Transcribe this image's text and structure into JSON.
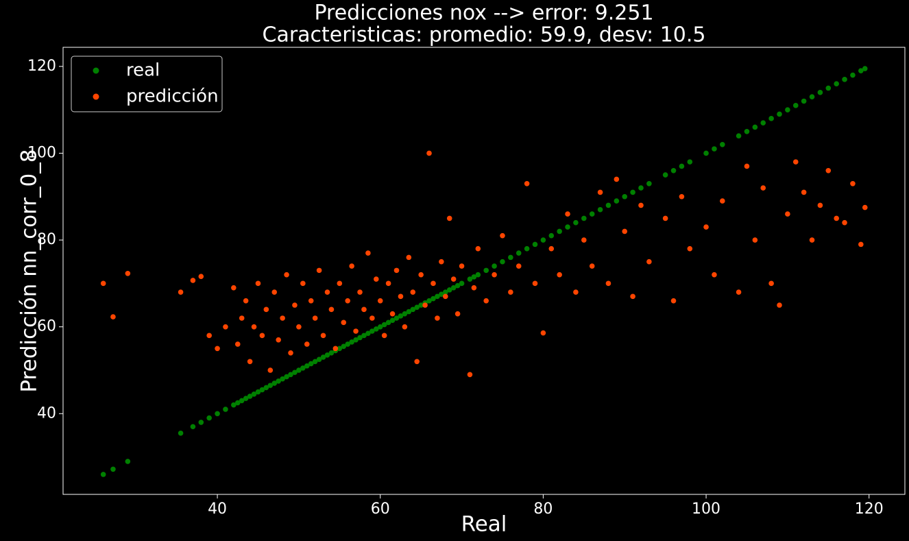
{
  "chart_data": {
    "type": "scatter",
    "title": "Predicciones nox --> error: 9.251",
    "subtitle": "Caracteristicas: promedio: 59.9, desv: 10.5",
    "x_label": "Real",
    "y_label": "Predicción nn_corr_0_8",
    "x": [
      26,
      27.2,
      29,
      35.5,
      37,
      38,
      39,
      40,
      41,
      42,
      42.5,
      43,
      43.5,
      44,
      44.5,
      45,
      45.5,
      46,
      46.5,
      47,
      47.5,
      48,
      48.5,
      49,
      49.5,
      50,
      50.5,
      51,
      51.5,
      52,
      52.5,
      53,
      53.5,
      54,
      54.5,
      55,
      55.5,
      56,
      56.5,
      57,
      57.5,
      58,
      58.5,
      59,
      59.5,
      60,
      60.5,
      61,
      61.5,
      62,
      62.5,
      63,
      63.5,
      64,
      64.5,
      65,
      65.5,
      66,
      66.5,
      67,
      67.5,
      68,
      68.5,
      69,
      69.5,
      70,
      71,
      71.5,
      72,
      73,
      74,
      75,
      76,
      77,
      78,
      79,
      80,
      81,
      82,
      83,
      84,
      85,
      86,
      87,
      88,
      89,
      90,
      91,
      92,
      93,
      95,
      96,
      97,
      98,
      100,
      101,
      102,
      104,
      105,
      106,
      107,
      108,
      109,
      110,
      111,
      112,
      113,
      114,
      115,
      116,
      117,
      118,
      119,
      119.5
    ],
    "series": [
      {
        "name": "real",
        "color": "#008000",
        "values": [
          26,
          27.2,
          29,
          35.5,
          37,
          38,
          39,
          40,
          41,
          42,
          42.5,
          43,
          43.5,
          44,
          44.5,
          45,
          45.5,
          46,
          46.5,
          47,
          47.5,
          48,
          48.5,
          49,
          49.5,
          50,
          50.5,
          51,
          51.5,
          52,
          52.5,
          53,
          53.5,
          54,
          54.5,
          55,
          55.5,
          56,
          56.5,
          57,
          57.5,
          58,
          58.5,
          59,
          59.5,
          60,
          60.5,
          61,
          61.5,
          62,
          62.5,
          63,
          63.5,
          64,
          64.5,
          65,
          65.5,
          66,
          66.5,
          67,
          67.5,
          68,
          68.5,
          69,
          69.5,
          70,
          71,
          71.5,
          72,
          73,
          74,
          75,
          76,
          77,
          78,
          79,
          80,
          81,
          82,
          83,
          84,
          85,
          86,
          87,
          88,
          89,
          90,
          91,
          92,
          93,
          95,
          96,
          97,
          98,
          100,
          101,
          102,
          104,
          105,
          106,
          107,
          108,
          109,
          110,
          111,
          112,
          113,
          114,
          115,
          116,
          117,
          118,
          119,
          119.5
        ]
      },
      {
        "name": "predicción",
        "color": "#ff4500",
        "values": [
          70,
          62.3,
          72.3,
          68,
          70.7,
          71.6,
          58,
          55,
          60,
          69,
          56,
          62,
          66,
          52,
          60,
          70,
          58,
          64,
          50,
          68,
          57,
          62,
          72,
          54,
          65,
          60,
          70,
          56,
          66,
          62,
          73,
          58,
          68,
          64,
          55,
          70,
          61,
          66,
          74,
          59,
          68,
          64,
          77,
          62,
          71,
          66,
          58,
          70,
          63,
          73,
          67,
          60,
          76,
          68,
          52,
          72,
          65,
          100,
          70,
          62,
          75,
          67,
          85,
          71,
          63,
          74,
          49,
          69,
          78,
          66,
          72,
          81,
          68,
          74,
          93,
          70,
          58.6,
          78,
          72,
          86,
          68,
          80,
          74,
          91,
          70,
          94,
          82,
          67,
          88,
          75,
          85,
          66,
          90,
          78,
          83,
          72,
          89,
          68,
          97,
          80,
          92,
          70,
          65,
          86,
          98,
          91,
          80,
          88,
          96,
          85,
          84,
          93,
          79,
          87.5
        ]
      }
    ],
    "xlim": [
      21.06,
      124.4
    ],
    "ylim": [
      21.4,
      124.4
    ],
    "xticks": [
      40,
      60,
      80,
      100,
      120
    ],
    "yticks": [
      40,
      60,
      80,
      100,
      120
    ],
    "grid": false,
    "legend": "upper left"
  }
}
